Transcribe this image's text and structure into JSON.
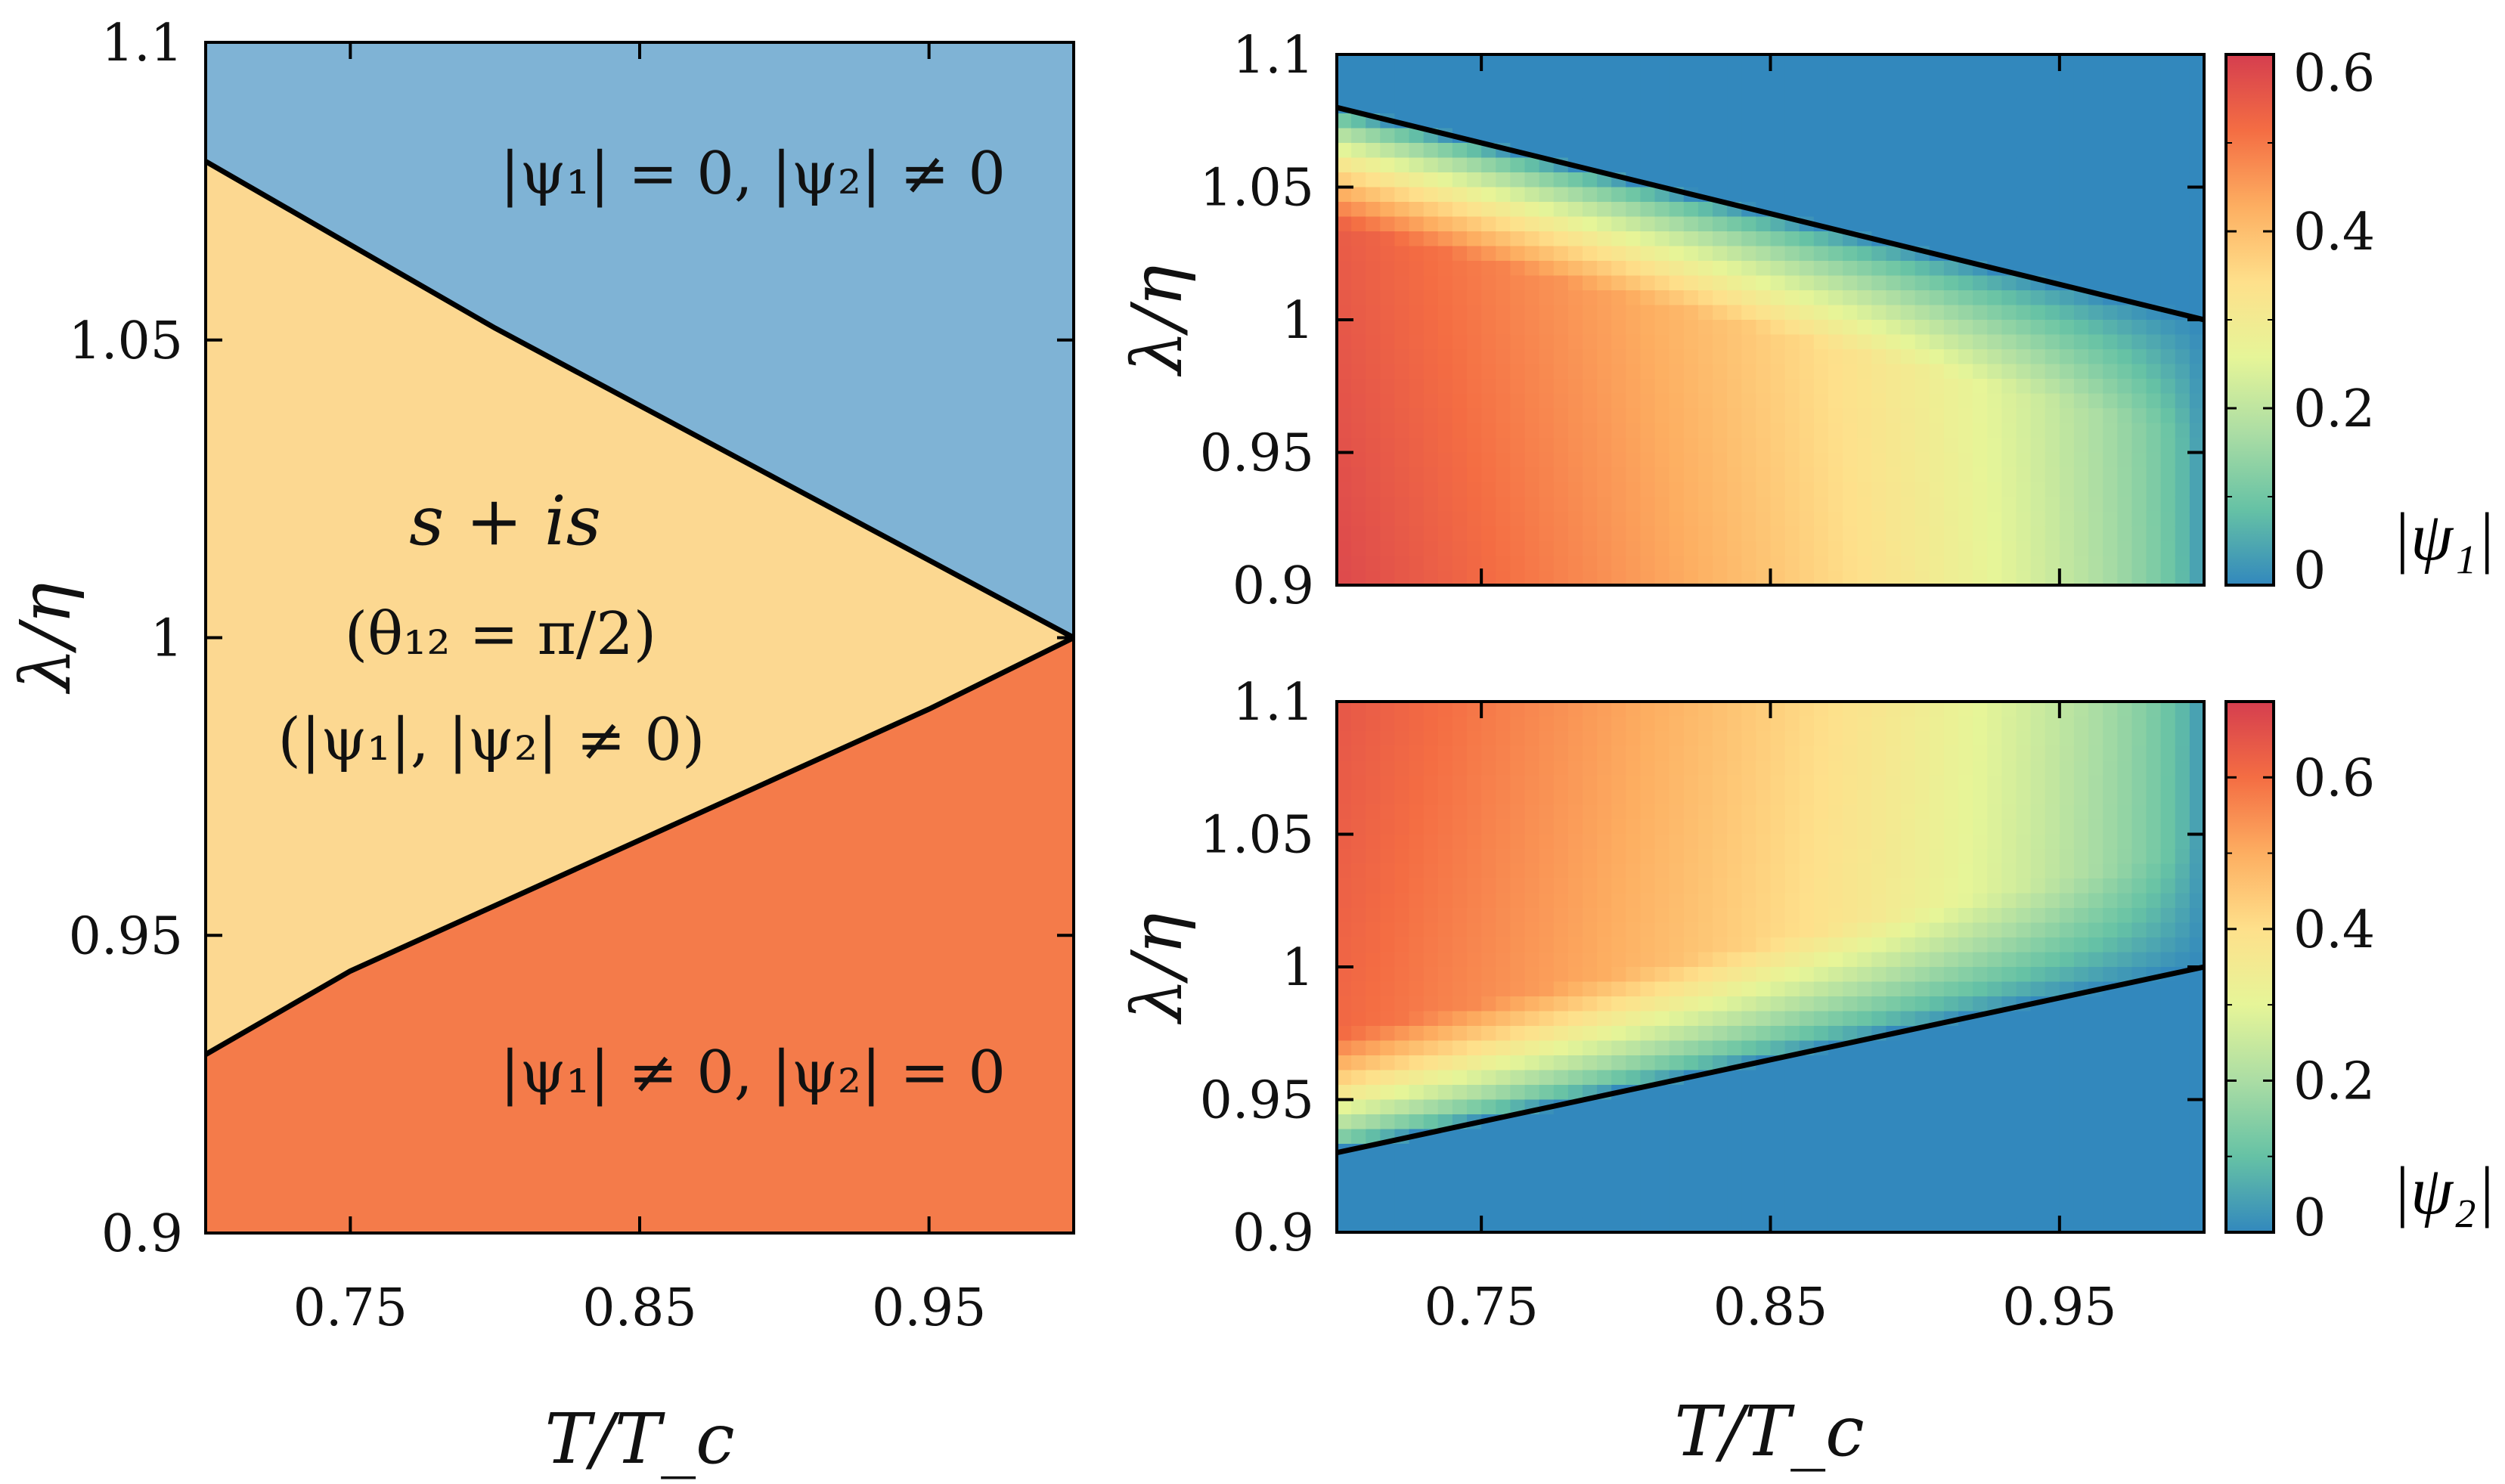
{
  "chart_data": [
    {
      "type": "area",
      "panel": "phase-diagram",
      "xlabel": "T/T_c",
      "ylabel": "λ/η",
      "xlim": [
        0.7,
        1.0
      ],
      "ylim": [
        0.9,
        1.1
      ],
      "xticks": [
        0.75,
        0.85,
        0.95
      ],
      "xtick_labels": [
        "0.75",
        "0.85",
        "0.95"
      ],
      "yticks": [
        0.9,
        0.95,
        1.0,
        1.05,
        1.1
      ],
      "ytick_labels": [
        "0.9",
        "0.95",
        "1",
        "1.05",
        "1.1"
      ],
      "boundaries": [
        {
          "x": [
            0.7,
            0.75,
            0.8,
            0.85,
            0.9,
            0.95,
            1.0
          ],
          "y": [
            1.08,
            1.066,
            1.052,
            1.039,
            1.026,
            1.013,
            1.0
          ]
        },
        {
          "x": [
            0.7,
            0.75,
            0.8,
            0.85,
            0.9,
            0.95,
            1.0
          ],
          "y": [
            0.93,
            0.944,
            0.955,
            0.966,
            0.977,
            0.988,
            1.0
          ]
        }
      ],
      "regions": [
        {
          "label_html_id": "region-top",
          "color": "#7fb3d5"
        },
        {
          "label_html_id": "region-middle",
          "color": "#fcd891"
        },
        {
          "label_html_id": "region-bottom",
          "color": "#f47b4a"
        }
      ],
      "annotations": {
        "top": "|ψ₁| = 0, |ψ₂| ≠ 0",
        "middle_1": "s + is",
        "middle_2": "(θ₁₂ = π/2)",
        "middle_3": "(|ψ₁|, |ψ₂| ≠ 0)",
        "bottom": "|ψ₁| ≠ 0, |ψ₂| = 0"
      }
    },
    {
      "type": "heatmap",
      "panel": "psi1-map",
      "xlabel": "T/T_c",
      "ylabel": "λ/η",
      "xlim": [
        0.7,
        1.0
      ],
      "ylim": [
        0.9,
        1.1
      ],
      "xticks": [
        0.75,
        0.85,
        0.95
      ],
      "xtick_labels": [
        "0.75",
        "0.85",
        "0.95"
      ],
      "yticks": [
        0.9,
        0.95,
        1.0,
        1.05,
        1.1
      ],
      "ytick_labels": [
        "0.9",
        "0.95",
        "1",
        "1.05",
        "1.1"
      ],
      "boundary": {
        "x": [
          0.7,
          1.0
        ],
        "y": [
          1.08,
          1.0
        ]
      },
      "colorbar": {
        "label": "|ψ₁|",
        "range": [
          0,
          0.6
        ],
        "ticks": [
          0,
          0.2,
          0.4,
          0.6
        ],
        "tick_labels": [
          "0",
          "0.2",
          "0.4",
          "0.6"
        ]
      },
      "max_value": 0.58
    },
    {
      "type": "heatmap",
      "panel": "psi2-map",
      "xlabel": "T/T_c",
      "ylabel": "λ/η",
      "xlim": [
        0.7,
        1.0
      ],
      "ylim": [
        0.9,
        1.1
      ],
      "xticks": [
        0.75,
        0.85,
        0.95
      ],
      "xtick_labels": [
        "0.75",
        "0.85",
        "0.95"
      ],
      "yticks": [
        0.9,
        0.95,
        1.0,
        1.05,
        1.1
      ],
      "ytick_labels": [
        "0.9",
        "0.95",
        "1",
        "1.05",
        "1.1"
      ],
      "boundary": {
        "x": [
          0.7,
          1.0
        ],
        "y": [
          0.93,
          1.0
        ]
      },
      "colorbar": {
        "label": "|ψ₂|",
        "range": [
          0,
          0.7
        ],
        "ticks": [
          0,
          0.2,
          0.4,
          0.6
        ],
        "tick_labels": [
          "0",
          "0.2",
          "0.4",
          "0.6"
        ]
      },
      "max_value": 0.65
    }
  ],
  "colors": {
    "colormap": [
      "#3288bd",
      "#66c2a5",
      "#abdda4",
      "#e6f598",
      "#fee08b",
      "#fdae61",
      "#f46d43",
      "#d53e4f"
    ],
    "boundary_line": "#000000"
  }
}
